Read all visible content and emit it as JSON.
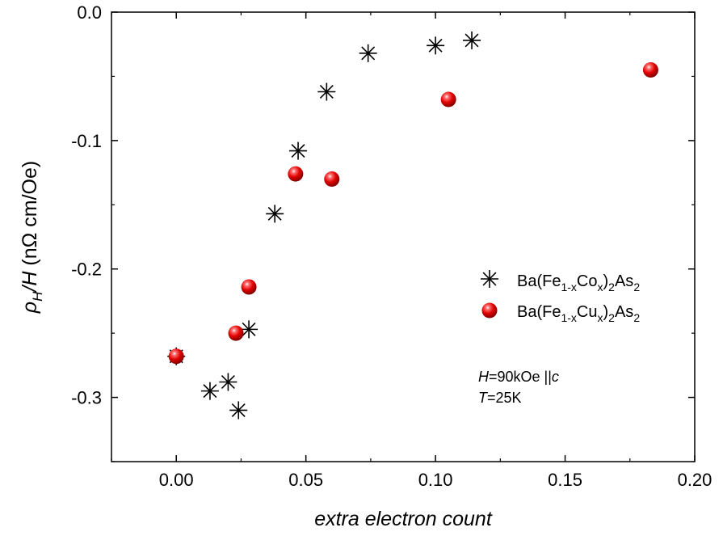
{
  "chart_data": {
    "type": "scatter",
    "xlabel": "extra electron count",
    "ylabel_parts": {
      "rho": "ρ",
      "sub": "H",
      "slash": "/",
      "H": "H",
      "unit": " (nΩ cm/Oe)"
    },
    "xlim": [
      -0.025,
      0.2
    ],
    "ylim": [
      -0.35,
      0.0
    ],
    "xticks": [
      0.0,
      0.05,
      0.1,
      0.15,
      0.2
    ],
    "xtick_labels": [
      "0.00",
      "0.05",
      "0.10",
      "0.15",
      "0.20"
    ],
    "yticks": [
      -0.3,
      -0.2,
      -0.1,
      0.0
    ],
    "ytick_labels": [
      "-0.3",
      "-0.2",
      "-0.1",
      "0.0"
    ],
    "grid": false,
    "legend_position": "right",
    "series": [
      {
        "marker": "asterisk",
        "color": "#000000",
        "legend_parts": [
          "Ba(Fe",
          "1-x",
          "Co",
          "x",
          ")",
          "2",
          "As",
          "2"
        ],
        "points": [
          [
            0.0,
            -0.268
          ],
          [
            0.013,
            -0.295
          ],
          [
            0.02,
            -0.288
          ],
          [
            0.024,
            -0.31
          ],
          [
            0.028,
            -0.247
          ],
          [
            0.038,
            -0.157
          ],
          [
            0.047,
            -0.108
          ],
          [
            0.058,
            -0.062
          ],
          [
            0.074,
            -0.032
          ],
          [
            0.1,
            -0.026
          ],
          [
            0.114,
            -0.022
          ]
        ]
      },
      {
        "marker": "sphere",
        "color": "#e00000",
        "legend_parts": [
          "Ba(Fe",
          "1-x",
          "Cu",
          "x",
          ")",
          "2",
          "As",
          "2"
        ],
        "points": [
          [
            0.0,
            -0.268
          ],
          [
            0.023,
            -0.25
          ],
          [
            0.028,
            -0.214
          ],
          [
            0.046,
            -0.126
          ],
          [
            0.06,
            -0.13
          ],
          [
            0.105,
            -0.068
          ],
          [
            0.183,
            -0.045
          ]
        ]
      }
    ],
    "annotations": [
      {
        "parts": [
          "H",
          "=90kOe ||",
          "c"
        ]
      },
      {
        "parts": [
          "T",
          "=25K"
        ]
      }
    ]
  }
}
